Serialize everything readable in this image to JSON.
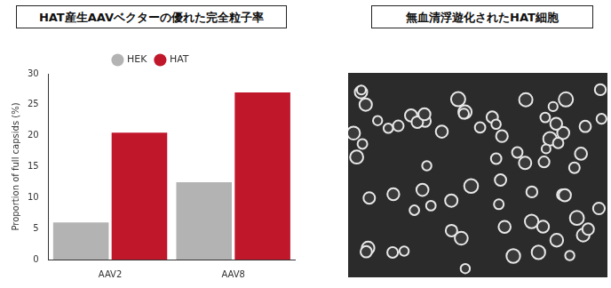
{
  "chart_data": {
    "type": "bar",
    "title": "HAT産生AAVベクターの優れた完全粒子率",
    "categories": [
      "AAV2",
      "AAV8"
    ],
    "series": [
      {
        "name": "HEK",
        "color": "#b3b3b3",
        "values": [
          6,
          12.5
        ]
      },
      {
        "name": "HAT",
        "color": "#c0172b",
        "values": [
          20.5,
          27
        ]
      }
    ],
    "y_label": "Proportion of full capsids (%)",
    "ylim": [
      0,
      30
    ],
    "yticks": [
      0,
      5,
      10,
      15,
      20,
      25,
      30
    ],
    "grid": false,
    "legend": "top"
  },
  "image_panel": {
    "title": "無血清浮遊化されたHAT細胞"
  }
}
